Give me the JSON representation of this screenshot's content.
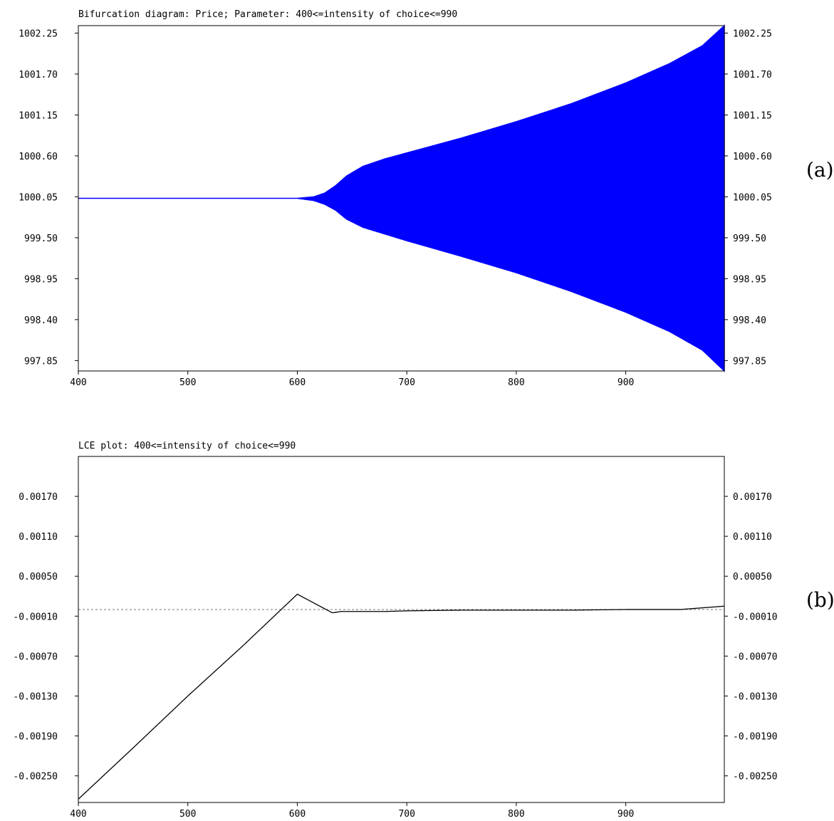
{
  "chart_data": [
    {
      "type": "bifurcation",
      "title": "Bifurcation diagram: Price; Parameter: 400<=intensity of choice<=990",
      "panel_label": "(a)",
      "xlabel": "",
      "ylabel": "",
      "xlim": [
        400,
        990
      ],
      "ylim": [
        997.71,
        1002.35
      ],
      "x_ticks": [
        400,
        500,
        600,
        700,
        800,
        900
      ],
      "y_ticks": [
        "997.85",
        "998.40",
        "998.95",
        "999.50",
        "1000.05",
        "1000.60",
        "1001.15",
        "1001.70",
        "1002.25"
      ],
      "color": "#0000ff",
      "envelope": {
        "x": [
          400,
          600,
          615,
          625,
          635,
          645,
          660,
          680,
          700,
          750,
          800,
          850,
          900,
          940,
          970,
          990
        ],
        "upper": [
          1000.03,
          1000.03,
          1000.05,
          1000.1,
          1000.2,
          1000.33,
          1000.46,
          1000.56,
          1000.64,
          1000.84,
          1001.06,
          1001.3,
          1001.58,
          1001.84,
          1002.08,
          1002.35
        ],
        "lower": [
          1000.03,
          1000.03,
          1000.0,
          999.95,
          999.87,
          999.75,
          999.64,
          999.55,
          999.46,
          999.25,
          999.03,
          998.78,
          998.5,
          998.24,
          997.99,
          997.71
        ]
      }
    },
    {
      "type": "line",
      "title": "LCE plot: 400<=intensity of choice<=990",
      "panel_label": "(b)",
      "xlabel": "",
      "ylabel": "",
      "xlim": [
        400,
        990
      ],
      "ylim": [
        -0.0029,
        0.0023
      ],
      "x_ticks": [
        400,
        500,
        600,
        700,
        800,
        900
      ],
      "y_ticks": [
        "-0.00250",
        "-0.00190",
        "-0.00130",
        "-0.00070",
        "-0.00010",
        "0.00050",
        "0.00110",
        "0.00170"
      ],
      "reference_line": 0,
      "color": "#000000",
      "series": [
        {
          "x": [
            400,
            450,
            500,
            550,
            600,
            632,
            640,
            680,
            700,
            750,
            800,
            850,
            900,
            950,
            990
          ],
          "values": [
            -0.00285,
            -0.00208,
            -0.0013,
            -0.00055,
            0.00023,
            -5e-05,
            -3e-05,
            -3e-05,
            -2e-05,
            -1e-05,
            -1e-05,
            -1e-05,
            0.0,
            0.0,
            5e-05
          ]
        }
      ]
    }
  ]
}
